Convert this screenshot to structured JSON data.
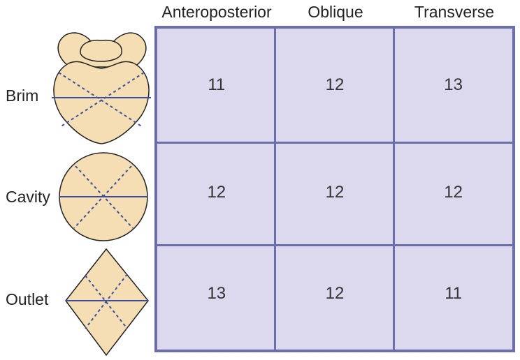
{
  "columns": [
    "Anteroposterior",
    "Oblique",
    "Transverse"
  ],
  "rows": [
    {
      "label": "Brim",
      "values": [
        "11",
        "12",
        "13"
      ]
    },
    {
      "label": "Cavity",
      "values": [
        "12",
        "12",
        "12"
      ]
    },
    {
      "label": "Outlet",
      "values": [
        "13",
        "12",
        "11"
      ]
    }
  ],
  "colors": {
    "grid_border": "#6a6fab",
    "grid_fill": "#dcd9ee",
    "shape_fill": "#f5deb3",
    "shape_outline": "#222222",
    "diameter_line": "#3d4f9a"
  }
}
